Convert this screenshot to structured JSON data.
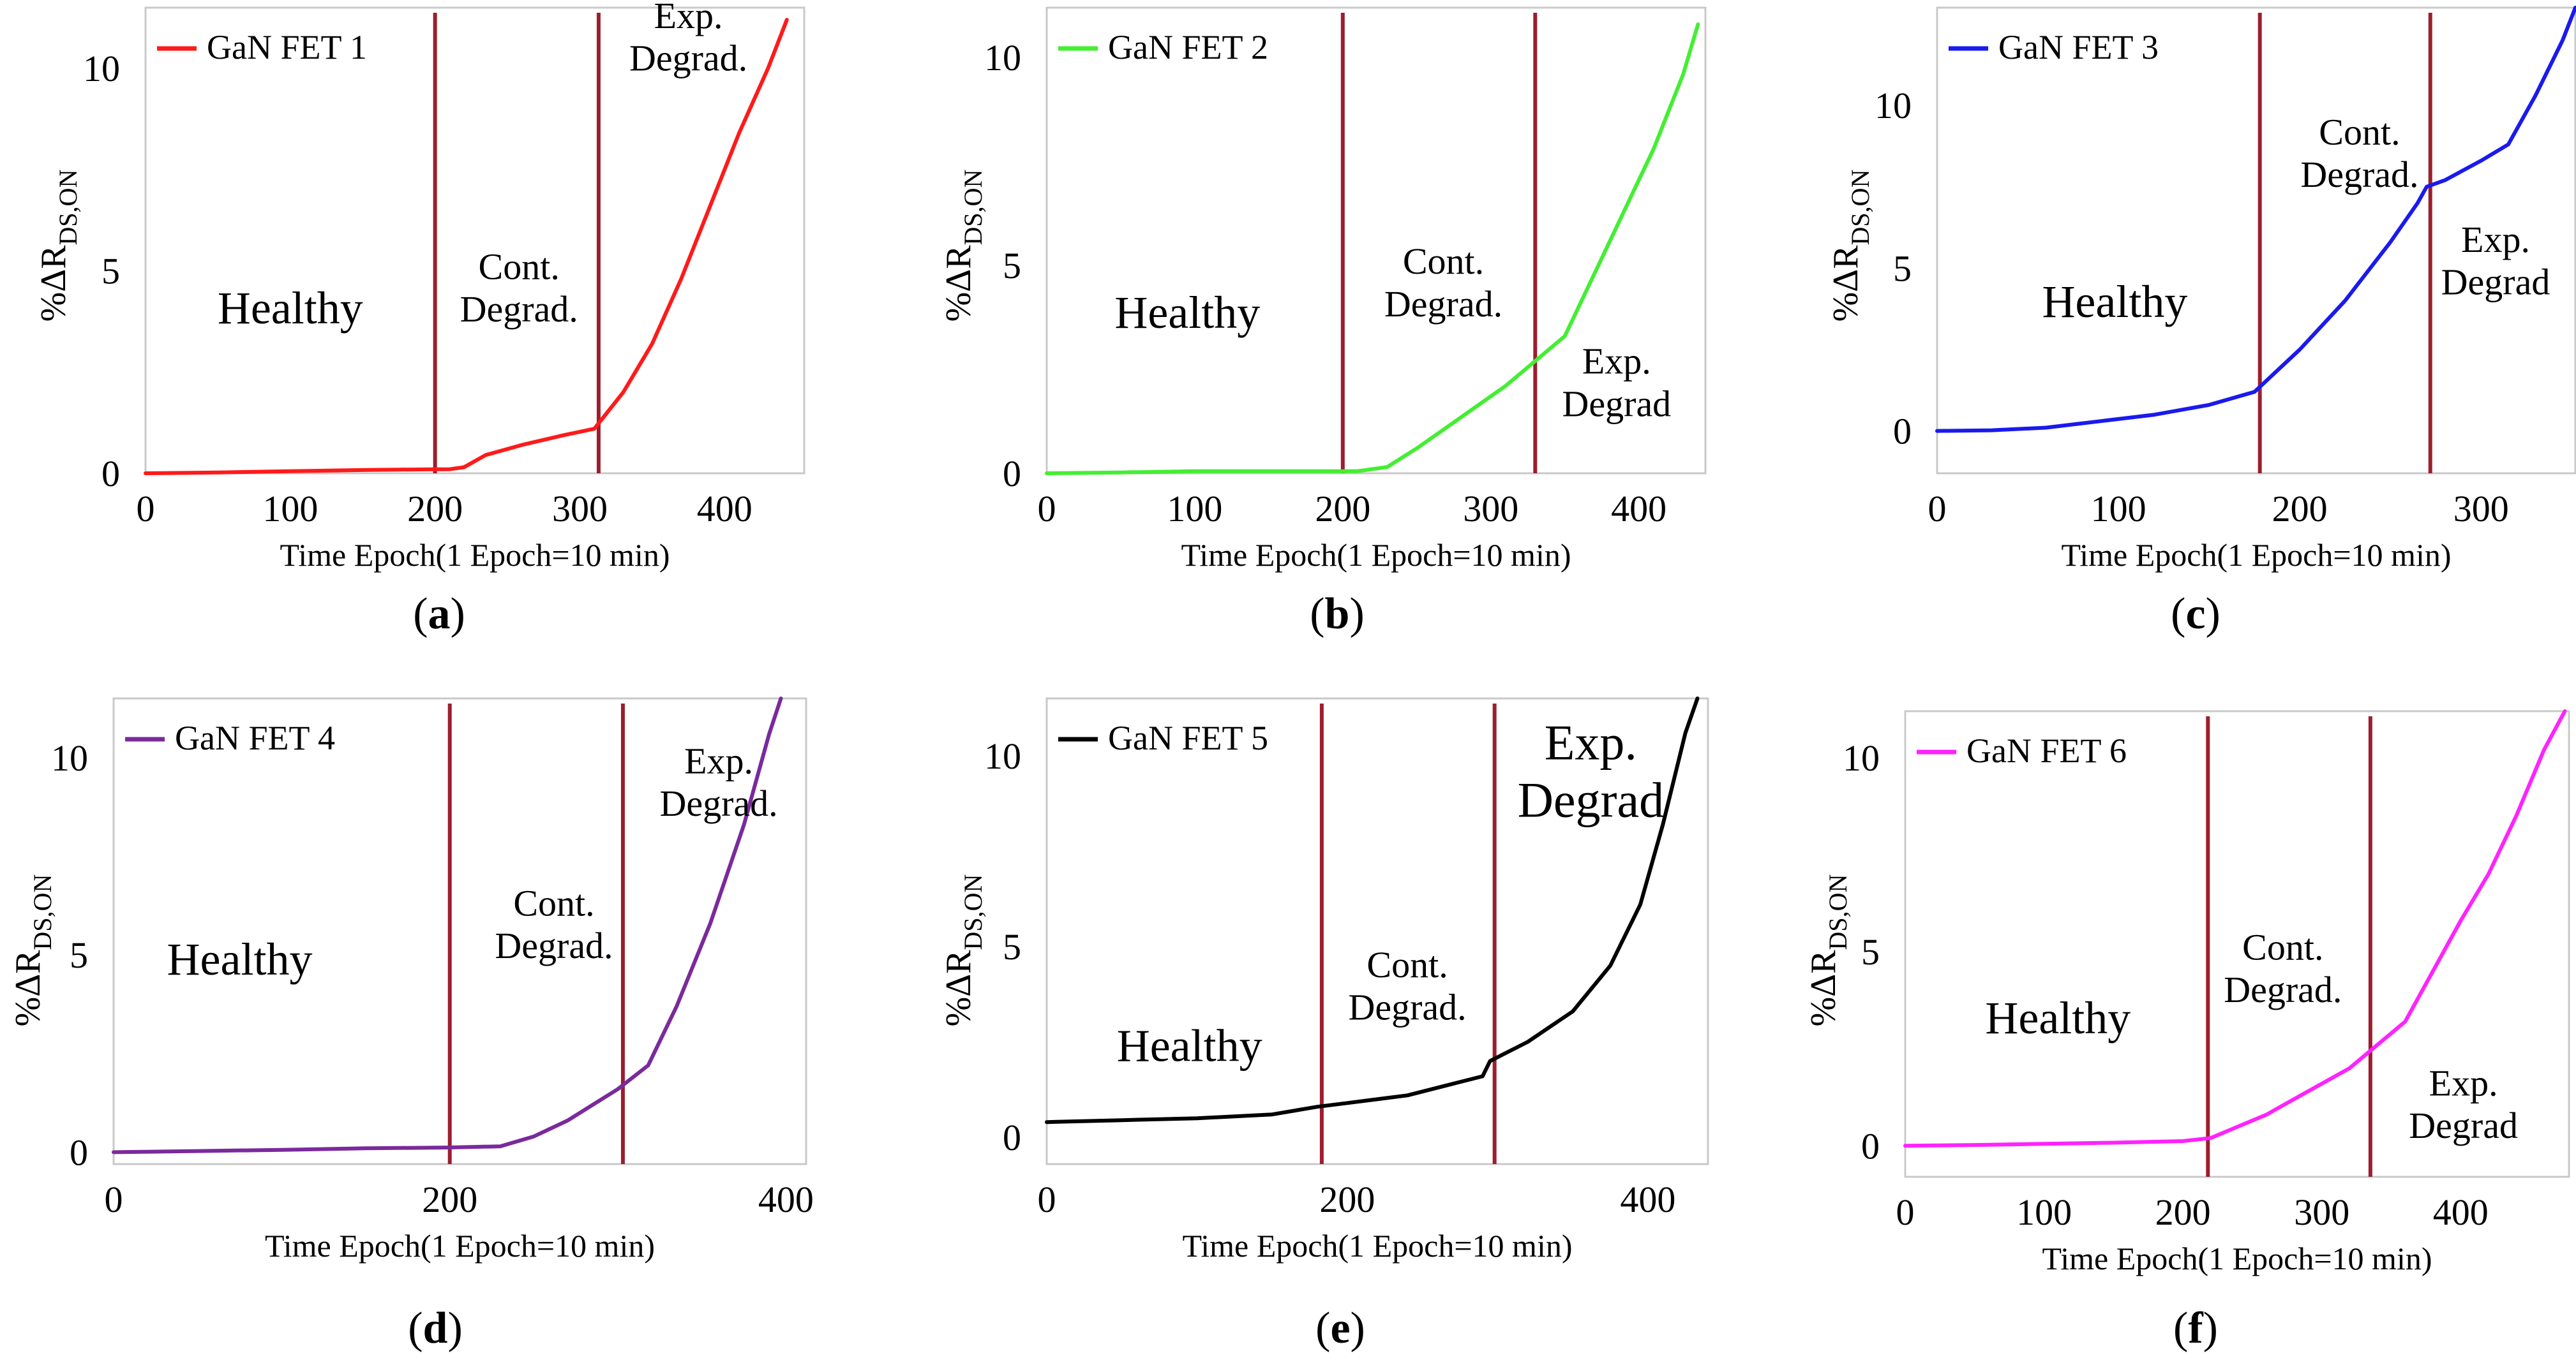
{
  "figure": {
    "captions": [
      "(a)",
      "(b)",
      "(c)",
      "(d)",
      "(e)",
      "(f)"
    ]
  },
  "chart_data": [
    {
      "type": "line",
      "panel": "a",
      "series": [
        {
          "name": "GaN FET 1",
          "color": "#ff1a1a",
          "x": [
            0,
            50,
            100,
            150,
            200,
            210,
            220,
            235,
            260,
            290,
            310,
            330,
            350,
            370,
            390,
            410,
            430,
            443
          ],
          "y": [
            0,
            0.02,
            0.05,
            0.08,
            0.1,
            0.1,
            0.15,
            0.45,
            0.7,
            0.95,
            1.1,
            2.0,
            3.2,
            4.8,
            6.6,
            8.4,
            10.0,
            11.2
          ]
        }
      ],
      "title": "",
      "xlabel": "Time Epoch(1 Epoch=10 min)",
      "ylabel_parts": [
        "%ΔR",
        "DS,ON"
      ],
      "xticks": [
        0,
        100,
        200,
        300,
        400
      ],
      "yticks": [
        0,
        5,
        10
      ],
      "xlim": [
        0,
        455
      ],
      "ylim": [
        0,
        11.5
      ],
      "vlines": [
        200,
        313
      ],
      "regions": [
        {
          "lines": [
            "Healthy"
          ],
          "x": 100,
          "y": 3.7
        },
        {
          "lines": [
            "Cont.",
            "Degrad."
          ],
          "x": 258,
          "y": 4.8
        },
        {
          "lines": [
            "Exp.",
            "Degrad."
          ],
          "x": 375,
          "y": 11.0
        }
      ]
    },
    {
      "type": "line",
      "panel": "b",
      "series": [
        {
          "name": "GaN FET 2",
          "color": "#44ee33",
          "x": [
            0,
            50,
            100,
            150,
            200,
            210,
            230,
            250,
            270,
            290,
            310,
            330,
            350,
            370,
            390,
            410,
            430,
            440
          ],
          "y": [
            0,
            0.02,
            0.05,
            0.05,
            0.05,
            0.05,
            0.15,
            0.6,
            1.1,
            1.6,
            2.1,
            2.7,
            3.3,
            4.8,
            6.3,
            7.8,
            9.6,
            10.8
          ]
        }
      ],
      "title": "",
      "xlabel": "Time Epoch(1 Epoch=10 min)",
      "ylabel_parts": [
        "%ΔR",
        "DS,ON"
      ],
      "xticks": [
        0,
        100,
        200,
        300,
        400
      ],
      "yticks": [
        0,
        5,
        10
      ],
      "xlim": [
        0,
        445
      ],
      "ylim": [
        0,
        11.2
      ],
      "vlines": [
        200,
        330
      ],
      "regions": [
        {
          "lines": [
            "Healthy"
          ],
          "x": 95,
          "y": 3.5
        },
        {
          "lines": [
            "Cont.",
            "Degrad."
          ],
          "x": 268,
          "y": 4.8
        },
        {
          "lines": [
            "Exp.",
            "Degrad"
          ],
          "x": 385,
          "y": 2.4
        }
      ]
    },
    {
      "type": "line",
      "panel": "c",
      "series": [
        {
          "name": "GaN FET 3",
          "color": "#1a1aee",
          "x": [
            0,
            30,
            60,
            90,
            120,
            150,
            175,
            200,
            225,
            250,
            265,
            270,
            280,
            300,
            315,
            330,
            345,
            352
          ],
          "y": [
            0,
            0.02,
            0.1,
            0.3,
            0.5,
            0.8,
            1.2,
            2.5,
            4.0,
            5.8,
            7.0,
            7.5,
            7.7,
            8.3,
            8.8,
            10.3,
            12.0,
            13.0
          ]
        }
      ],
      "title": "",
      "xlabel": "Time Epoch(1 Epoch=10 min)",
      "ylabel_parts": [
        "%ΔR",
        "DS,ON"
      ],
      "xticks": [
        0,
        100,
        200,
        300
      ],
      "yticks": [
        0,
        5,
        10
      ],
      "xlim": [
        0,
        352
      ],
      "ylim": [
        -1.3,
        13.0
      ],
      "vlines": [
        178,
        272
      ],
      "regions": [
        {
          "lines": [
            "Healthy"
          ],
          "x": 98,
          "y": 3.5
        },
        {
          "lines": [
            "Cont.",
            "Degrad."
          ],
          "x": 233,
          "y": 8.8
        },
        {
          "lines": [
            "Exp.",
            "Degrad"
          ],
          "x": 308,
          "y": 5.5
        }
      ]
    },
    {
      "type": "line",
      "panel": "d",
      "series": [
        {
          "name": "GaN FET 4",
          "color": "#7a2a9c",
          "x": [
            0,
            50,
            100,
            150,
            200,
            230,
            250,
            270,
            285,
            300,
            318,
            335,
            355,
            375,
            390,
            397
          ],
          "y": [
            0,
            0.03,
            0.06,
            0.1,
            0.12,
            0.15,
            0.4,
            0.8,
            1.2,
            1.6,
            2.2,
            3.7,
            5.8,
            8.3,
            10.6,
            11.5
          ]
        }
      ],
      "title": "",
      "xlabel": "Time Epoch(1 Epoch=10 min)",
      "ylabel_parts": [
        "%ΔR",
        "DS,ON"
      ],
      "xticks": [
        0,
        200,
        400
      ],
      "yticks": [
        0,
        5,
        10
      ],
      "xlim": [
        0,
        412
      ],
      "ylim": [
        -0.3,
        11.5
      ],
      "vlines": [
        200,
        303
      ],
      "regions": [
        {
          "lines": [
            "Healthy"
          ],
          "x": 75,
          "y": 4.5
        },
        {
          "lines": [
            "Cont.",
            "Degrad."
          ],
          "x": 262,
          "y": 6.0
        },
        {
          "lines": [
            "Exp.",
            "Degrad."
          ],
          "x": 360,
          "y": 9.6
        }
      ]
    },
    {
      "type": "line",
      "panel": "e",
      "series": [
        {
          "name": "GaN FET 5",
          "color": "#000000",
          "x": [
            0,
            50,
            100,
            150,
            180,
            200,
            240,
            270,
            290,
            295,
            320,
            350,
            375,
            395,
            410,
            425,
            433
          ],
          "y": [
            0.4,
            0.45,
            0.5,
            0.6,
            0.8,
            0.9,
            1.1,
            1.4,
            1.6,
            2.0,
            2.5,
            3.3,
            4.5,
            6.1,
            8.2,
            10.6,
            11.5
          ]
        }
      ],
      "title": "",
      "xlabel": "Time Epoch(1 Epoch=10 min)",
      "ylabel_parts": [
        "%ΔR",
        "DS,ON"
      ],
      "xticks": [
        0,
        200,
        400
      ],
      "yticks": [
        0,
        5,
        10
      ],
      "xlim": [
        0,
        440
      ],
      "ylim": [
        -0.7,
        11.5
      ],
      "vlines": [
        183,
        298
      ],
      "regions": [
        {
          "lines": [
            "Healthy"
          ],
          "x": 95,
          "y": 2.0
        },
        {
          "lines": [
            "Cont.",
            "Degrad."
          ],
          "x": 240,
          "y": 4.2
        },
        {
          "lines": [
            "Exp.",
            "Degrad"
          ],
          "x": 362,
          "y": 9.9
        }
      ]
    },
    {
      "type": "line",
      "panel": "f",
      "series": [
        {
          "name": "GaN FET 6",
          "color": "#ff22ff",
          "x": [
            0,
            50,
            100,
            150,
            200,
            220,
            240,
            260,
            280,
            300,
            320,
            340,
            360,
            380,
            400,
            420,
            440,
            460,
            475
          ],
          "y": [
            0,
            0.02,
            0.05,
            0.08,
            0.12,
            0.2,
            0.5,
            0.8,
            1.2,
            1.6,
            2.0,
            2.6,
            3.2,
            4.5,
            5.8,
            7.0,
            8.5,
            10.2,
            11.2
          ]
        }
      ],
      "title": "",
      "xlabel": "Time Epoch(1 Epoch=10 min)",
      "ylabel_parts": [
        "%ΔR",
        "DS,ON"
      ],
      "xticks": [
        0,
        100,
        200,
        300,
        400
      ],
      "yticks": [
        0,
        5,
        10
      ],
      "xlim": [
        0,
        478
      ],
      "ylim": [
        -0.8,
        11.2
      ],
      "vlines": [
        218,
        335
      ],
      "regions": [
        {
          "lines": [
            "Healthy"
          ],
          "x": 110,
          "y": 2.9
        },
        {
          "lines": [
            "Cont.",
            "Degrad."
          ],
          "x": 272,
          "y": 4.8
        },
        {
          "lines": [
            "Exp.",
            "Degrad"
          ],
          "x": 402,
          "y": 1.3
        }
      ]
    }
  ]
}
